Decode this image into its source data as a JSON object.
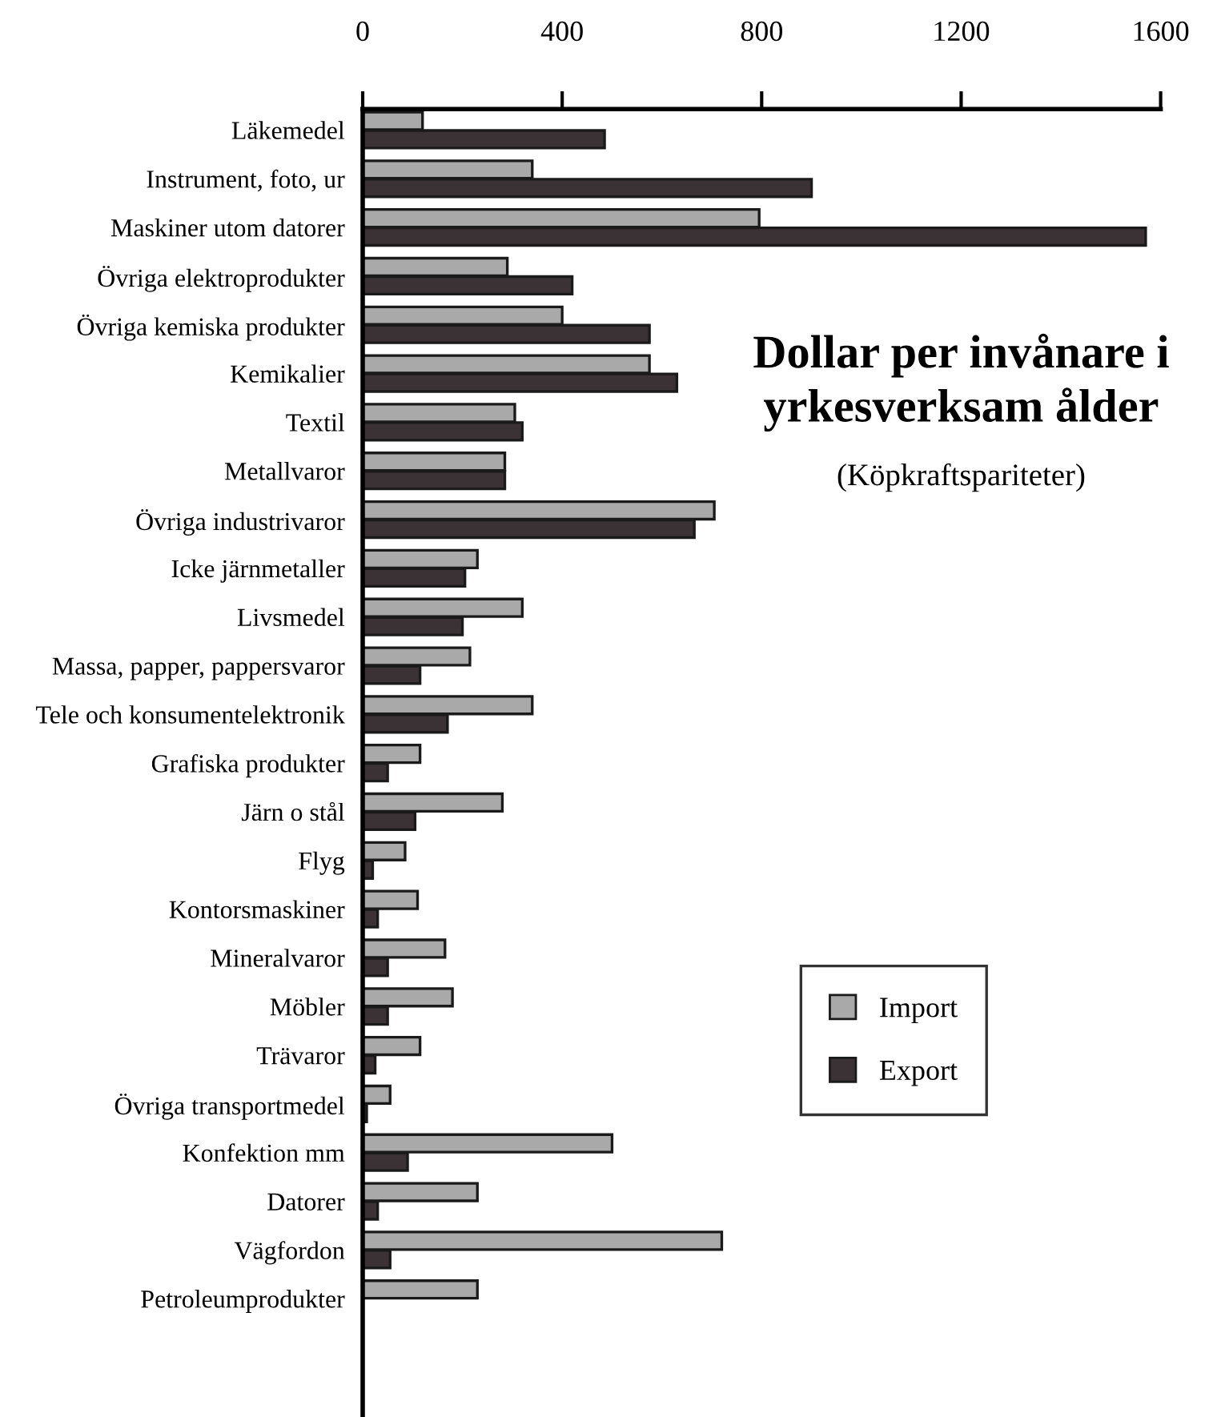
{
  "chart_data": {
    "type": "bar",
    "orientation": "horizontal",
    "title": "Dollar per invånare i yrkesverksam ålder",
    "subtitle": "(Köpkraftspariteter)",
    "categories": [
      "Läkemedel",
      "Instrument, foto, ur",
      "Maskiner utom datorer",
      "Övriga elektroprodukter",
      "Övriga kemiska produkter",
      "Kemikalier",
      "Textil",
      "Metallvaror",
      "Övriga industrivaror",
      "Icke järnmetaller",
      "Livsmedel",
      "Massa, papper, pappersvaror",
      "Tele och konsumentelektronik",
      "Grafiska produkter",
      "Järn o stål",
      "Flyg",
      "Kontorsmaskiner",
      "Mineralvaror",
      "Möbler",
      "Trävaror",
      "Övriga transportmedel",
      "Konfektion mm",
      "Datorer",
      "Vägfordon",
      "Petroleumprodukter"
    ],
    "series": [
      {
        "name": "Import",
        "color": "#a9a9a9",
        "values": [
          120,
          340,
          795,
          290,
          400,
          575,
          305,
          285,
          705,
          230,
          320,
          215,
          340,
          115,
          280,
          85,
          110,
          165,
          180,
          115,
          55,
          500,
          230,
          720,
          230
        ]
      },
      {
        "name": "Export",
        "color": "#3a3234",
        "values": [
          485,
          900,
          1570,
          420,
          575,
          630,
          320,
          285,
          665,
          205,
          200,
          115,
          170,
          50,
          105,
          20,
          30,
          50,
          50,
          25,
          8,
          90,
          30,
          55,
          null
        ]
      }
    ],
    "xlim": [
      0,
      1600
    ],
    "xticks": [
      0,
      400,
      800,
      1200,
      1600
    ],
    "grid": false,
    "legend": "lower right"
  }
}
